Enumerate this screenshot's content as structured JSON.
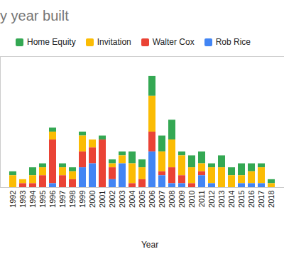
{
  "chart_data": {
    "type": "bar",
    "title": "y year built",
    "x_label": "Year",
    "stacked": true,
    "legend": "top",
    "tick_labels": "x",
    "grid": false,
    "ylim": [
      0,
      33
    ],
    "categories": [
      "1992",
      "1993",
      "1994",
      "1995",
      "1996",
      "1997",
      "1998",
      "1999",
      "2000",
      "2001",
      "2002",
      "2003",
      "2004",
      "2005",
      "2006",
      "2007",
      "2008",
      "2009",
      "2010",
      "2011",
      "2012",
      "2013",
      "2014",
      "2015",
      "2016",
      "2017",
      "2018"
    ],
    "series": [
      {
        "name": "Home Equity",
        "color": "#34a853",
        "values": [
          1,
          0,
          2,
          1,
          1,
          1,
          1,
          1,
          0,
          1,
          1,
          1,
          3,
          2,
          5,
          4,
          5,
          1,
          3,
          3,
          1,
          3,
          2,
          3,
          2,
          1,
          1
        ]
      },
      {
        "name": "Invitation",
        "color": "#fbbc04",
        "values": [
          3,
          1,
          2,
          2,
          2,
          2,
          2,
          4,
          2,
          0,
          1,
          2,
          5,
          3,
          9,
          5,
          7,
          5,
          4,
          2,
          4,
          5,
          3,
          2,
          3,
          4,
          1
        ]
      },
      {
        "name": "Walter Cox",
        "color": "#ea4335",
        "values": [
          0,
          1,
          1,
          3,
          11,
          3,
          2,
          4,
          4,
          12,
          3,
          0,
          1,
          2,
          5,
          1,
          4,
          2,
          1,
          1,
          0,
          0,
          0,
          0,
          0,
          0,
          0
        ]
      },
      {
        "name": "Rob Rice",
        "color": "#4285f4",
        "values": [
          0,
          0,
          0,
          0,
          1,
          0,
          0,
          5,
          6,
          0,
          2,
          6,
          0,
          0,
          9,
          3,
          1,
          1,
          0,
          3,
          1,
          0,
          0,
          1,
          1,
          1,
          0
        ]
      }
    ]
  }
}
